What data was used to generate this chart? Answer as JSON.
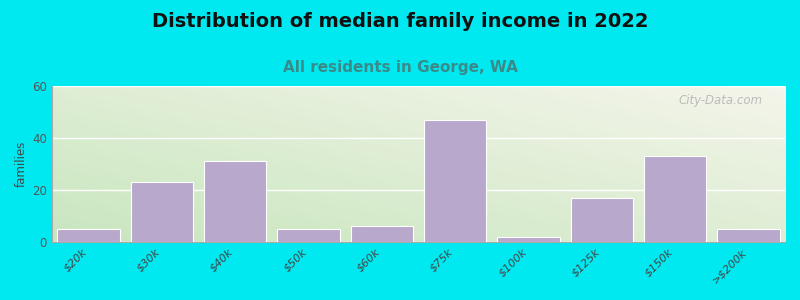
{
  "title": "Distribution of median family income in 2022",
  "subtitle": "All residents in George, WA",
  "categories": [
    "$20k",
    "$30k",
    "$40k",
    "$50k",
    "$60k",
    "$75k",
    "$100k",
    "$125k",
    "$150k",
    ">$200k"
  ],
  "values": [
    5,
    23,
    31,
    5,
    6,
    47,
    2,
    17,
    33,
    5
  ],
  "bar_color": "#b8a8cc",
  "bar_edge_color": "#ffffff",
  "ylabel": "families",
  "ylim": [
    0,
    60
  ],
  "yticks": [
    0,
    20,
    40,
    60
  ],
  "background_outer": "#00e8f0",
  "background_plot_topleft": "#c8e6c0",
  "background_plot_topright": "#f0f0e8",
  "background_plot_bottomright": "#e8e8e0",
  "title_fontsize": 14,
  "subtitle_fontsize": 11,
  "subtitle_color": "#3a8a8a",
  "watermark_text": "City-Data.com"
}
